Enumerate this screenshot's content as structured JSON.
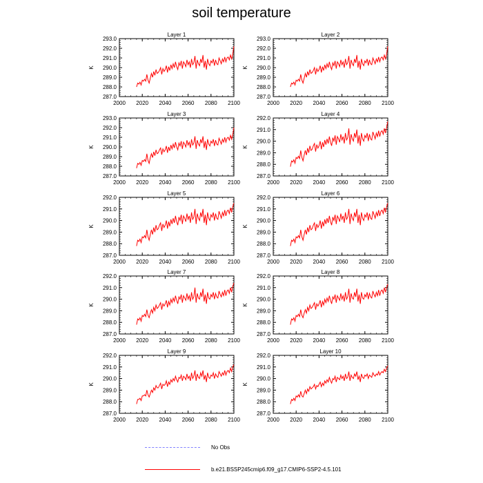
{
  "title": "soil temperature",
  "chart_data": {
    "type": "line",
    "title": "soil temperature",
    "xlabel": "",
    "ylabel": "K",
    "xlim": [
      2000,
      2100
    ],
    "xticks": [
      2000,
      2020,
      2040,
      2060,
      2080,
      2100
    ],
    "x_start": 2015,
    "x_end": 2100,
    "line_color": "#ff0000",
    "panels": [
      {
        "name": "Layer 1",
        "ylim": [
          287.0,
          293.0
        ],
        "yticks": [
          "287.0",
          "288.0",
          "289.0",
          "290.0",
          "291.0",
          "292.0",
          "293.0"
        ],
        "values": [
          288.0,
          288.4,
          288.3,
          288.5,
          288.2,
          288.7,
          288.6,
          288.8,
          288.6,
          289.3,
          288.7,
          288.4,
          288.9,
          289.4,
          289.0,
          289.6,
          289.2,
          289.8,
          289.4,
          289.5,
          289.7,
          290.0,
          289.3,
          289.9,
          289.6,
          289.8,
          290.2,
          289.5,
          290.1,
          289.7,
          290.3,
          289.9,
          290.4,
          290.0,
          290.6,
          290.1,
          289.8,
          290.5,
          290.2,
          290.7,
          289.9,
          290.6,
          290.4,
          290.1,
          290.8,
          290.3,
          290.6,
          290.0,
          290.9,
          290.3,
          290.5,
          291.2,
          289.9,
          290.8,
          290.4,
          290.2,
          290.9,
          290.5,
          291.3,
          290.0,
          290.7,
          289.8,
          290.9,
          290.4,
          290.2,
          290.7,
          290.5,
          290.9,
          290.2,
          290.8,
          290.4,
          290.3,
          291.0,
          290.7,
          290.4,
          290.9,
          290.6,
          291.1,
          290.6,
          291.0,
          291.1,
          290.8,
          291.3,
          290.9,
          291.4,
          292.2
        ]
      },
      {
        "name": "Layer 2",
        "ylim": [
          287.0,
          293.0
        ],
        "yticks": [
          "287.0",
          "288.0",
          "289.0",
          "290.0",
          "291.0",
          "292.0",
          "293.0"
        ],
        "values": [
          288.0,
          288.4,
          288.3,
          288.5,
          288.2,
          288.7,
          288.6,
          288.8,
          288.6,
          289.3,
          288.7,
          288.4,
          288.9,
          289.4,
          289.0,
          289.6,
          289.2,
          289.8,
          289.4,
          289.5,
          289.7,
          290.0,
          289.3,
          289.9,
          289.6,
          289.8,
          290.2,
          289.5,
          290.1,
          289.7,
          290.3,
          289.9,
          290.4,
          290.0,
          290.6,
          290.1,
          289.8,
          290.5,
          290.2,
          290.7,
          289.9,
          290.6,
          290.4,
          290.1,
          290.8,
          290.3,
          290.6,
          290.0,
          290.9,
          290.3,
          290.5,
          291.2,
          289.9,
          290.8,
          290.4,
          290.2,
          290.9,
          290.5,
          291.3,
          290.0,
          290.7,
          289.8,
          290.9,
          290.4,
          290.2,
          290.7,
          290.5,
          290.9,
          290.2,
          290.8,
          290.4,
          290.3,
          291.0,
          290.7,
          290.4,
          290.9,
          290.6,
          291.1,
          290.6,
          291.0,
          291.1,
          290.8,
          291.3,
          290.9,
          291.4,
          292.2
        ]
      },
      {
        "name": "Layer 3",
        "ylim": [
          287.0,
          293.0
        ],
        "yticks": [
          "287.0",
          "288.0",
          "289.0",
          "290.0",
          "291.0",
          "292.0",
          "293.0"
        ],
        "values": [
          287.8,
          288.3,
          288.2,
          288.4,
          288.1,
          288.6,
          288.5,
          288.7,
          288.5,
          289.3,
          288.6,
          288.3,
          288.9,
          289.3,
          288.9,
          289.5,
          289.1,
          289.7,
          289.3,
          289.4,
          289.7,
          289.9,
          289.2,
          289.8,
          289.5,
          289.7,
          290.1,
          289.4,
          290.0,
          289.6,
          290.2,
          289.8,
          290.3,
          289.9,
          290.5,
          290.0,
          289.7,
          290.4,
          290.1,
          290.6,
          289.8,
          290.5,
          290.3,
          290.0,
          290.7,
          290.2,
          290.5,
          289.9,
          290.8,
          290.2,
          290.4,
          291.1,
          289.8,
          290.7,
          290.3,
          290.1,
          290.8,
          290.4,
          291.1,
          289.9,
          290.6,
          289.7,
          290.8,
          290.3,
          290.1,
          290.6,
          290.4,
          290.8,
          290.1,
          290.7,
          290.3,
          290.2,
          290.9,
          290.6,
          290.3,
          290.8,
          290.5,
          291.0,
          290.5,
          290.9,
          291.0,
          290.7,
          291.2,
          290.8,
          291.3,
          292.0
        ]
      },
      {
        "name": "Layer 4",
        "ylim": [
          287.0,
          292.0
        ],
        "yticks": [
          "287.0",
          "288.0",
          "289.0",
          "290.0",
          "291.0",
          "292.0"
        ],
        "values": [
          287.8,
          288.3,
          288.2,
          288.4,
          288.1,
          288.6,
          288.5,
          288.7,
          288.5,
          289.2,
          288.6,
          288.3,
          288.8,
          289.2,
          288.8,
          289.4,
          289.0,
          289.6,
          289.2,
          289.3,
          289.6,
          289.8,
          289.1,
          289.7,
          289.4,
          289.6,
          290.0,
          289.3,
          289.9,
          289.5,
          290.1,
          289.7,
          290.2,
          289.8,
          290.4,
          289.9,
          289.6,
          290.3,
          290.0,
          290.5,
          289.7,
          290.4,
          290.2,
          289.9,
          290.6,
          290.1,
          290.4,
          289.8,
          290.7,
          290.1,
          290.3,
          291.1,
          289.7,
          290.6,
          290.2,
          290.0,
          290.7,
          290.3,
          291.0,
          289.8,
          290.5,
          289.6,
          290.7,
          290.2,
          290.0,
          290.5,
          290.3,
          290.7,
          290.0,
          290.6,
          290.2,
          290.1,
          290.8,
          290.5,
          290.2,
          290.7,
          290.4,
          290.9,
          290.4,
          290.8,
          290.9,
          290.6,
          291.1,
          290.7,
          291.2,
          291.7
        ]
      },
      {
        "name": "Layer 5",
        "ylim": [
          287.0,
          292.0
        ],
        "yticks": [
          "287.0",
          "288.0",
          "289.0",
          "290.0",
          "291.0",
          "292.0"
        ],
        "values": [
          287.8,
          288.3,
          288.2,
          288.4,
          288.1,
          288.6,
          288.5,
          288.7,
          288.5,
          289.2,
          288.6,
          288.3,
          288.8,
          289.2,
          288.8,
          289.4,
          289.0,
          289.6,
          289.2,
          289.3,
          289.6,
          289.8,
          289.1,
          289.7,
          289.4,
          289.6,
          290.0,
          289.3,
          289.9,
          289.5,
          290.1,
          289.7,
          290.2,
          289.8,
          290.4,
          289.9,
          289.6,
          290.3,
          290.0,
          290.5,
          289.7,
          290.4,
          290.2,
          289.9,
          290.6,
          290.1,
          290.4,
          289.8,
          290.7,
          290.1,
          290.3,
          291.0,
          289.7,
          290.6,
          290.2,
          290.0,
          290.7,
          290.3,
          291.0,
          289.8,
          290.5,
          289.6,
          290.7,
          290.2,
          290.0,
          290.5,
          290.3,
          290.7,
          290.0,
          290.6,
          290.2,
          290.1,
          290.8,
          290.5,
          290.2,
          290.7,
          290.4,
          290.9,
          290.4,
          290.8,
          290.9,
          290.6,
          291.1,
          290.7,
          291.2,
          291.5
        ]
      },
      {
        "name": "Layer 6",
        "ylim": [
          287.0,
          292.0
        ],
        "yticks": [
          "287.0",
          "288.0",
          "289.0",
          "290.0",
          "291.0",
          "292.0"
        ],
        "values": [
          287.8,
          288.3,
          288.2,
          288.4,
          288.1,
          288.6,
          288.5,
          288.7,
          288.5,
          289.2,
          288.6,
          288.3,
          288.8,
          289.2,
          288.8,
          289.4,
          289.0,
          289.6,
          289.2,
          289.3,
          289.6,
          289.8,
          289.1,
          289.7,
          289.4,
          289.6,
          290.0,
          289.3,
          289.9,
          289.5,
          290.1,
          289.7,
          290.2,
          289.8,
          290.4,
          289.9,
          289.6,
          290.3,
          290.0,
          290.5,
          289.7,
          290.4,
          290.2,
          289.9,
          290.6,
          290.1,
          290.4,
          289.8,
          290.7,
          290.1,
          290.3,
          291.0,
          289.7,
          290.6,
          290.2,
          290.0,
          290.7,
          290.3,
          291.0,
          289.8,
          290.5,
          289.6,
          290.7,
          290.2,
          290.0,
          290.5,
          290.3,
          290.7,
          290.0,
          290.6,
          290.2,
          290.1,
          290.8,
          290.5,
          290.2,
          290.7,
          290.4,
          290.9,
          290.4,
          290.8,
          290.9,
          290.6,
          291.1,
          290.7,
          291.2,
          291.5
        ]
      },
      {
        "name": "Layer 7",
        "ylim": [
          287.0,
          292.0
        ],
        "yticks": [
          "287.0",
          "288.0",
          "289.0",
          "290.0",
          "291.0",
          "292.0"
        ],
        "values": [
          287.8,
          288.3,
          288.2,
          288.4,
          288.1,
          288.6,
          288.5,
          288.7,
          288.5,
          289.1,
          288.6,
          288.4,
          288.8,
          289.1,
          288.8,
          289.3,
          289.0,
          289.5,
          289.2,
          289.3,
          289.5,
          289.7,
          289.1,
          289.6,
          289.4,
          289.6,
          289.9,
          289.3,
          289.8,
          289.5,
          290.0,
          289.7,
          290.1,
          289.8,
          290.3,
          289.9,
          289.6,
          290.2,
          290.0,
          290.4,
          289.7,
          290.3,
          290.1,
          289.9,
          290.5,
          290.0,
          290.3,
          289.8,
          290.6,
          290.0,
          290.2,
          291.0,
          289.7,
          290.5,
          290.1,
          290.0,
          290.6,
          290.2,
          290.9,
          289.8,
          290.4,
          289.6,
          290.6,
          290.1,
          290.0,
          290.4,
          290.2,
          290.6,
          290.0,
          290.5,
          290.2,
          290.1,
          290.7,
          290.4,
          290.2,
          290.6,
          290.3,
          290.8,
          290.3,
          290.7,
          290.8,
          290.5,
          291.0,
          290.6,
          291.1,
          291.4
        ]
      },
      {
        "name": "Layer 8",
        "ylim": [
          287.0,
          292.0
        ],
        "yticks": [
          "287.0",
          "288.0",
          "289.0",
          "290.0",
          "291.0",
          "292.0"
        ],
        "values": [
          287.8,
          288.3,
          288.2,
          288.4,
          288.1,
          288.6,
          288.5,
          288.7,
          288.5,
          289.1,
          288.6,
          288.4,
          288.8,
          289.1,
          288.8,
          289.3,
          289.0,
          289.5,
          289.2,
          289.3,
          289.5,
          289.7,
          289.1,
          289.6,
          289.4,
          289.6,
          289.9,
          289.3,
          289.8,
          289.5,
          290.0,
          289.7,
          290.1,
          289.8,
          290.3,
          289.9,
          289.6,
          290.2,
          290.0,
          290.4,
          289.7,
          290.3,
          290.1,
          289.9,
          290.5,
          290.0,
          290.3,
          289.8,
          290.6,
          290.0,
          290.2,
          290.9,
          289.7,
          290.5,
          290.1,
          290.0,
          290.6,
          290.2,
          290.9,
          289.8,
          290.4,
          289.6,
          290.6,
          290.1,
          290.0,
          290.4,
          290.2,
          290.6,
          290.0,
          290.5,
          290.2,
          290.1,
          290.7,
          290.4,
          290.2,
          290.6,
          290.3,
          290.8,
          290.3,
          290.7,
          290.8,
          290.5,
          291.0,
          290.6,
          291.0,
          291.3
        ]
      },
      {
        "name": "Layer 9",
        "ylim": [
          287.0,
          292.0
        ],
        "yticks": [
          "287.0",
          "288.0",
          "289.0",
          "290.0",
          "291.0",
          "292.0"
        ],
        "values": [
          287.8,
          288.2,
          288.2,
          288.3,
          288.1,
          288.5,
          288.5,
          288.6,
          288.5,
          289.0,
          288.6,
          288.4,
          288.7,
          289.0,
          288.8,
          289.2,
          289.0,
          289.4,
          289.2,
          289.2,
          289.4,
          289.6,
          289.1,
          289.5,
          289.4,
          289.5,
          289.8,
          289.3,
          289.7,
          289.5,
          289.9,
          289.7,
          290.0,
          289.8,
          290.2,
          289.9,
          289.7,
          290.1,
          290.0,
          290.3,
          289.8,
          290.2,
          290.1,
          289.9,
          290.4,
          290.0,
          290.2,
          289.8,
          290.5,
          290.0,
          290.2,
          290.7,
          289.8,
          290.4,
          290.1,
          290.0,
          290.5,
          290.2,
          290.7,
          289.9,
          290.3,
          289.7,
          290.5,
          290.1,
          290.0,
          290.3,
          290.2,
          290.5,
          290.0,
          290.4,
          290.2,
          290.1,
          290.6,
          290.4,
          290.2,
          290.5,
          290.3,
          290.7,
          290.3,
          290.6,
          290.7,
          290.5,
          290.9,
          290.6,
          291.0,
          291.2
        ]
      },
      {
        "name": "Layer 10",
        "ylim": [
          287.0,
          292.0
        ],
        "yticks": [
          "287.0",
          "288.0",
          "289.0",
          "290.0",
          "291.0",
          "292.0"
        ],
        "values": [
          287.8,
          288.2,
          288.1,
          288.3,
          288.1,
          288.5,
          288.4,
          288.6,
          288.4,
          288.9,
          288.5,
          288.4,
          288.7,
          289.0,
          288.7,
          289.1,
          288.9,
          289.3,
          289.1,
          289.2,
          289.3,
          289.5,
          289.1,
          289.4,
          289.3,
          289.5,
          289.7,
          289.3,
          289.6,
          289.4,
          289.8,
          289.6,
          289.9,
          289.7,
          290.1,
          289.8,
          289.6,
          290.0,
          289.9,
          290.2,
          289.7,
          290.1,
          290.0,
          289.9,
          290.3,
          290.0,
          290.2,
          289.8,
          290.4,
          290.0,
          290.1,
          290.6,
          289.8,
          290.3,
          290.1,
          290.0,
          290.4,
          290.2,
          290.6,
          289.9,
          290.2,
          289.7,
          290.4,
          290.1,
          290.0,
          290.3,
          290.2,
          290.4,
          290.0,
          290.3,
          290.2,
          290.1,
          290.5,
          290.3,
          290.2,
          290.4,
          290.3,
          290.6,
          290.3,
          290.5,
          290.6,
          290.5,
          290.8,
          290.6,
          290.9,
          291.1
        ]
      }
    ]
  },
  "legend": {
    "items": [
      {
        "label": "No Obs",
        "color": "#8080ff",
        "style": "dashed"
      },
      {
        "label": "b.e21.BSSP245cmip6.f09_g17.CMIP6-SSP2-4.5.101",
        "color": "#ff0000",
        "style": "solid"
      }
    ]
  }
}
